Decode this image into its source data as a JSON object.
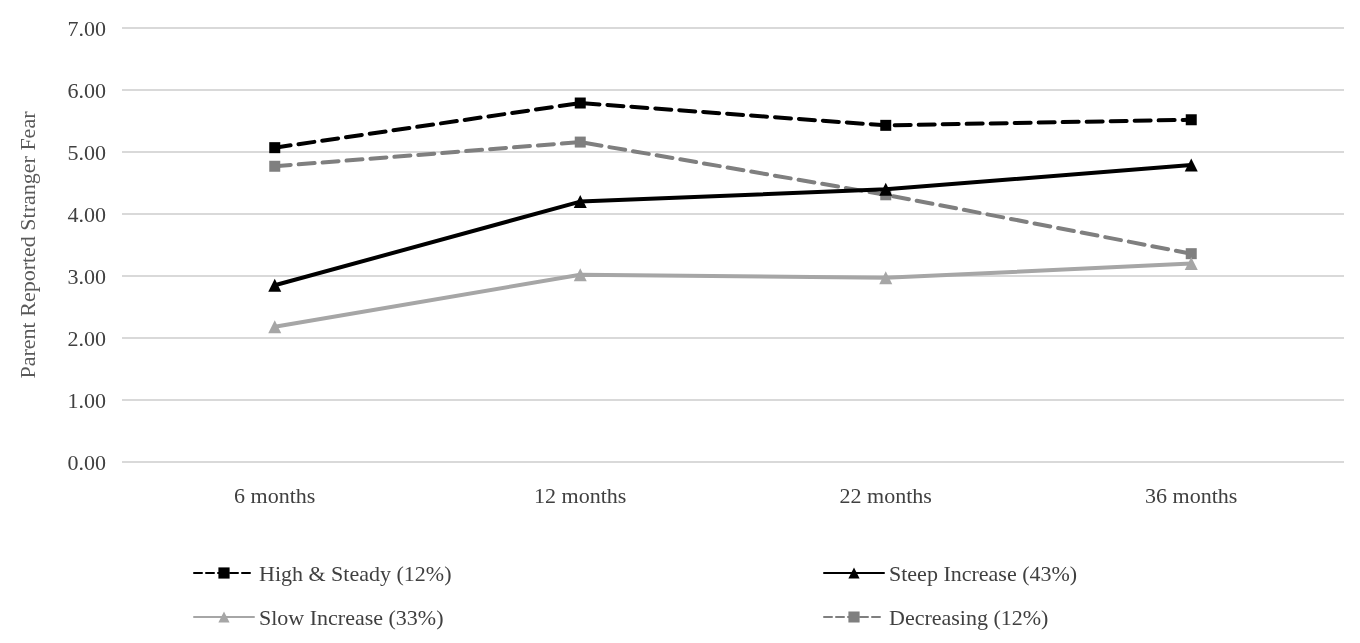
{
  "chart_data": {
    "type": "line",
    "ylabel": "Parent Reported Stranger Fear",
    "categories": [
      "6 months",
      "12 months",
      "22 months",
      "36 months"
    ],
    "series": [
      {
        "name": "High & Steady (12%)",
        "color": "#000000",
        "marker": "square",
        "line_style": "dashed",
        "values": [
          5.07,
          5.79,
          5.43,
          5.52
        ]
      },
      {
        "name": "Steep Increase (43%)",
        "color": "#000000",
        "marker": "triangle",
        "line_style": "solid",
        "values": [
          2.85,
          4.2,
          4.4,
          4.79
        ]
      },
      {
        "name": "Slow Increase (33%)",
        "color": "#a6a6a6",
        "marker": "triangle",
        "line_style": "solid",
        "values": [
          2.18,
          3.02,
          2.97,
          3.2
        ]
      },
      {
        "name": "Decreasing (12%)",
        "color": "#7f7f7f",
        "marker": "square",
        "line_style": "dashed",
        "values": [
          4.77,
          5.16,
          4.31,
          3.36
        ]
      }
    ],
    "ylim": [
      0,
      7
    ],
    "yticks": [
      {
        "value": 0,
        "label": "0.00"
      },
      {
        "value": 1,
        "label": "1.00"
      },
      {
        "value": 2,
        "label": "2.00"
      },
      {
        "value": 3,
        "label": "3.00"
      },
      {
        "value": 4,
        "label": "4.00"
      },
      {
        "value": 5,
        "label": "5.00"
      },
      {
        "value": 6,
        "label": "6.00"
      },
      {
        "value": 7,
        "label": "7.00"
      }
    ],
    "grid": "y",
    "legend": "bottom"
  }
}
